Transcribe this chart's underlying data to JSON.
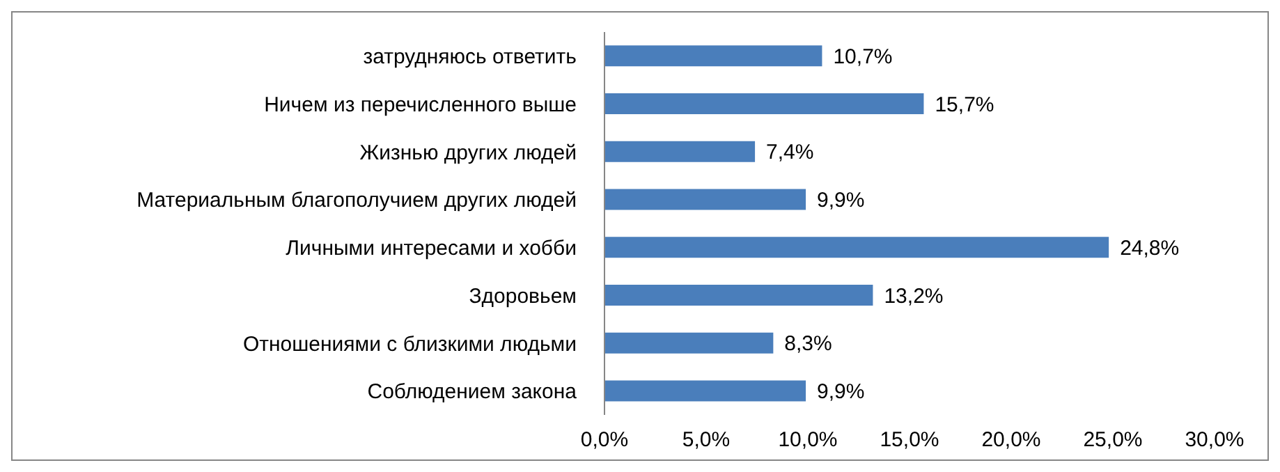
{
  "chart_data": {
    "type": "bar",
    "orientation": "horizontal",
    "categories": [
      "затрудняюсь ответить",
      "Ничем из перечисленного выше",
      "Жизнью других людей",
      "Материальным благополучием других людей",
      "Личными интересами и хобби",
      "Здоровьем",
      "Отношениями с близкими людьми",
      "Соблюдением закона"
    ],
    "values": [
      10.7,
      15.7,
      7.4,
      9.9,
      24.8,
      13.2,
      8.3,
      9.9
    ],
    "value_labels": [
      "10,7%",
      "15,7%",
      "7,4%",
      "9,9%",
      "24,8%",
      "13,2%",
      "8,3%",
      "9,9%"
    ],
    "color": "#4a7ebb",
    "xlim": [
      0,
      30
    ],
    "xticks": [
      {
        "value": 0,
        "label": "0,0%"
      },
      {
        "value": 5,
        "label": "5,0%"
      },
      {
        "value": 10,
        "label": "10,0%"
      },
      {
        "value": 15,
        "label": "15,0%"
      },
      {
        "value": 20,
        "label": "20,0%"
      },
      {
        "value": 25,
        "label": "25,0%"
      },
      {
        "value": 30,
        "label": "30,0%"
      }
    ],
    "grid": false,
    "legend": false
  }
}
